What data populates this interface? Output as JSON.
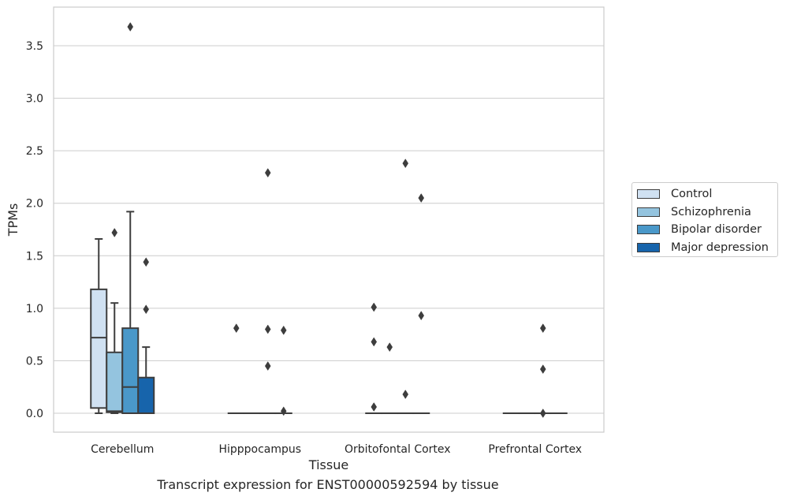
{
  "chart_data": {
    "type": "box",
    "title": "",
    "caption": "Transcript expression for ENST00000592594 by tissue",
    "xlabel": "Tissue",
    "ylabel": "TPMs",
    "ylim": [
      -0.18,
      3.88
    ],
    "yticks": [
      "0.0",
      "0.5",
      "1.0",
      "1.5",
      "2.0",
      "2.5",
      "3.0",
      "3.5"
    ],
    "ytick_values": [
      0,
      0.5,
      1.0,
      1.5,
      2.0,
      2.5,
      3.0,
      3.5
    ],
    "grid": "horizontal",
    "legend_position": "right",
    "categories": [
      "Cerebellum",
      "Hipppocampus",
      "Orbitofontal Cortex",
      "Prefrontal Cortex"
    ],
    "series": [
      {
        "name": "Control",
        "color": "#d0e1f2",
        "boxes": [
          {
            "min": 0.0,
            "q1": 0.05,
            "median": 0.72,
            "q3": 1.18,
            "max": 1.66,
            "outliers": []
          },
          {
            "min": 0.0,
            "q1": 0.0,
            "median": 0.0,
            "q3": 0.0,
            "max": 0.0,
            "outliers": [
              0.81
            ]
          },
          {
            "min": 0.0,
            "q1": 0.0,
            "median": 0.0,
            "q3": 0.0,
            "max": 0.0,
            "outliers": [
              1.01,
              0.68,
              0.06
            ]
          },
          {
            "min": 0.0,
            "q1": 0.0,
            "median": 0.0,
            "q3": 0.0,
            "max": 0.0,
            "outliers": []
          }
        ]
      },
      {
        "name": "Schizophrenia",
        "color": "#94c4df",
        "boxes": [
          {
            "min": 0.0,
            "q1": 0.01,
            "median": 0.02,
            "q3": 0.58,
            "max": 1.05,
            "outliers": [
              1.72
            ]
          },
          {
            "min": 0.0,
            "q1": 0.0,
            "median": 0.0,
            "q3": 0.0,
            "max": 0.0,
            "outliers": []
          },
          {
            "min": 0.0,
            "q1": 0.0,
            "median": 0.0,
            "q3": 0.0,
            "max": 0.0,
            "outliers": [
              0.63
            ]
          },
          {
            "min": 0.0,
            "q1": 0.0,
            "median": 0.0,
            "q3": 0.0,
            "max": 0.0,
            "outliers": []
          }
        ]
      },
      {
        "name": "Bipolar disorder",
        "color": "#4a98c9",
        "boxes": [
          {
            "min": 0.0,
            "q1": 0.0,
            "median": 0.25,
            "q3": 0.81,
            "max": 1.92,
            "outliers": [
              3.68
            ]
          },
          {
            "min": 0.0,
            "q1": 0.0,
            "median": 0.0,
            "q3": 0.0,
            "max": 0.0,
            "outliers": [
              2.29,
              0.8,
              0.45
            ]
          },
          {
            "min": 0.0,
            "q1": 0.0,
            "median": 0.0,
            "q3": 0.0,
            "max": 0.0,
            "outliers": [
              2.38,
              0.18
            ]
          },
          {
            "min": 0.0,
            "q1": 0.0,
            "median": 0.0,
            "q3": 0.0,
            "max": 0.0,
            "outliers": [
              0.81,
              0.42,
              0.0
            ]
          }
        ]
      },
      {
        "name": "Major depression",
        "color": "#1764ab",
        "boxes": [
          {
            "min": 0.0,
            "q1": 0.0,
            "median": 0.0,
            "q3": 0.34,
            "max": 0.63,
            "outliers": [
              1.44,
              0.99
            ]
          },
          {
            "min": 0.0,
            "q1": 0.0,
            "median": 0.0,
            "q3": 0.0,
            "max": 0.0,
            "outliers": [
              0.79,
              0.02
            ]
          },
          {
            "min": 0.0,
            "q1": 0.0,
            "median": 0.0,
            "q3": 0.0,
            "max": 0.0,
            "outliers": [
              2.05,
              0.93
            ]
          },
          {
            "min": 0.0,
            "q1": 0.0,
            "median": 0.0,
            "q3": 0.0,
            "max": 0.0,
            "outliers": []
          }
        ]
      }
    ]
  }
}
